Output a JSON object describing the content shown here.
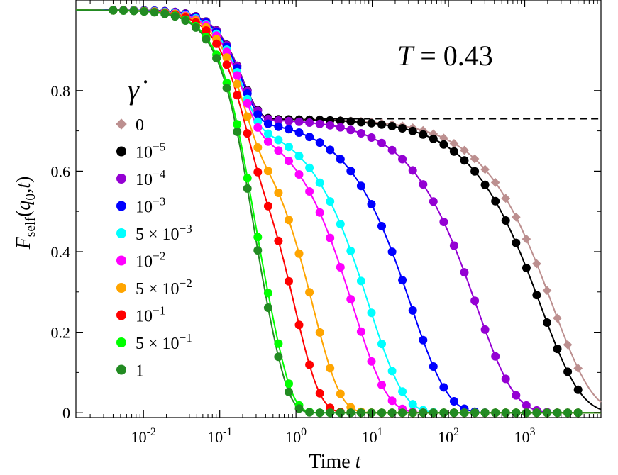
{
  "chart_data": {
    "type": "scatter",
    "xlabel": "Time t",
    "ylabel": "F_self(q_0,t)",
    "annotation": "T = 0.43",
    "legend_title": "γ̇",
    "x_scale": "log",
    "xlim": [
      0.0013,
      10000
    ],
    "ylim": [
      -0.012,
      1.025
    ],
    "x_ticks": [
      0.01,
      0.1,
      1,
      10,
      100,
      1000
    ],
    "x_tick_labels": [
      {
        "base": "10",
        "exp": "-2"
      },
      {
        "base": "10",
        "exp": "-1"
      },
      {
        "base": "10",
        "exp": "0"
      },
      {
        "base": "10",
        "exp": "1"
      },
      {
        "base": "10",
        "exp": "2"
      },
      {
        "base": "10",
        "exp": "3"
      }
    ],
    "y_ticks": [
      0,
      0.2,
      0.4,
      0.6,
      0.8
    ],
    "y_tick_labels": [
      "0",
      "0.2",
      "0.4",
      "0.6",
      "0.8"
    ],
    "plateau_level": 0.73,
    "plateau_from": 1,
    "grid": false,
    "legend_position": "left",
    "series": [
      {
        "name": "0",
        "label": {
          "pre": "",
          "base": "0",
          "exp": ""
        },
        "color": "#BC8F8F",
        "marker": "diamond",
        "tau": 2300,
        "beta": 0.82,
        "end": 5000
      },
      {
        "name": "10^-5",
        "label": {
          "pre": "",
          "base": "10",
          "exp": "−5"
        },
        "color": "#000000",
        "marker": "circle",
        "tau": 1600,
        "beta": 0.82,
        "end": 5000
      },
      {
        "name": "10^-4",
        "label": {
          "pre": "",
          "base": "10",
          "exp": "−4"
        },
        "color": "#9400D3",
        "marker": "circle",
        "tau": 230,
        "beta": 0.86,
        "end": 5000
      },
      {
        "name": "10^-3",
        "label": {
          "pre": "",
          "base": "10",
          "exp": "−3"
        },
        "color": "#0000FF",
        "marker": "circle",
        "tau": 32,
        "beta": 0.9,
        "end": 5000
      },
      {
        "name": "5 × 10^-3",
        "label": {
          "pre": "5 × ",
          "base": "10",
          "exp": "−3"
        },
        "color": "#00FFFF",
        "marker": "circle",
        "tau": 9,
        "beta": 0.95,
        "end": 5000
      },
      {
        "name": "10^-2",
        "label": {
          "pre": "",
          "base": "10",
          "exp": "−2"
        },
        "color": "#FF00FF",
        "marker": "circle",
        "tau": 5.5,
        "beta": 0.97,
        "end": 5000
      },
      {
        "name": "5 × 10^-2",
        "label": {
          "pre": "5 × ",
          "base": "10",
          "exp": "−2"
        },
        "color": "#FFA500",
        "marker": "circle",
        "tau": 1.65,
        "beta": 1.2,
        "end": 5000
      },
      {
        "name": "10^-1",
        "label": {
          "pre": "",
          "base": "10",
          "exp": "−1"
        },
        "color": "#FF0000",
        "marker": "circle",
        "tau": 0.95,
        "beta": 1.3,
        "end": 5000
      },
      {
        "name": "5 × 10^-1",
        "label": {
          "pre": "5 × ",
          "base": "10",
          "exp": "−1"
        },
        "color": "#00FF00",
        "marker": "circle",
        "tau": 0.46,
        "beta": 1.5,
        "end": 5000
      },
      {
        "name": "1",
        "label": {
          "pre": "",
          "base": "1",
          "exp": ""
        },
        "color": "#228B22",
        "marker": "circle",
        "tau": 0.42,
        "beta": 1.5,
        "end": 5000
      }
    ]
  }
}
